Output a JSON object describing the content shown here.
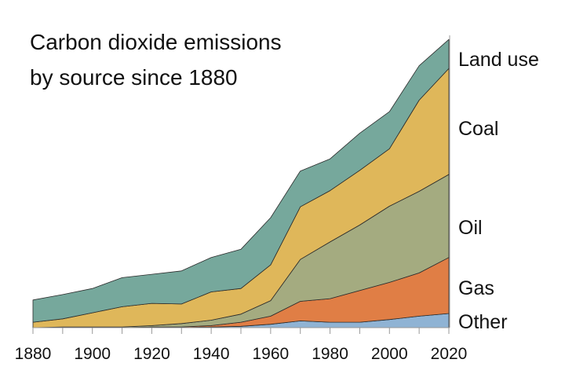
{
  "chart_data": {
    "type": "area",
    "stacked": true,
    "title_lines": [
      "Carbon dioxide emissions",
      "by source since 1880"
    ],
    "xlabel": "",
    "ylabel": "",
    "xlim": [
      1880,
      2020
    ],
    "ylim": [
      0,
      43.3
    ],
    "grid": false,
    "legend": "direct labels at right",
    "x": [
      1880,
      1890,
      1900,
      1910,
      1920,
      1930,
      1940,
      1950,
      1960,
      1970,
      1980,
      1990,
      2000,
      2010,
      2020
    ],
    "x_ticks": [
      "1880",
      "1900",
      "1920",
      "1940",
      "1960",
      "1980",
      "2000",
      "2020"
    ],
    "series": [
      {
        "name": "Other",
        "color": "#8fb3d4",
        "values": [
          0,
          0,
          0,
          0,
          0,
          0,
          0.1,
          0.2,
          0.5,
          1.0,
          0.8,
          0.8,
          1.2,
          1.7,
          2.1
        ]
      },
      {
        "name": "Gas",
        "color": "#e07e45",
        "values": [
          0,
          0,
          0,
          0,
          0.1,
          0.1,
          0.2,
          0.6,
          1.2,
          2.9,
          3.5,
          4.7,
          5.5,
          6.4,
          8.3
        ]
      },
      {
        "name": "Oil",
        "color": "#a4ab80",
        "values": [
          0,
          0.1,
          0.1,
          0.1,
          0.2,
          0.5,
          0.8,
          1.2,
          2.3,
          6.2,
          8.4,
          9.7,
          11.3,
          12.1,
          12.3
        ]
      },
      {
        "name": "Coal",
        "color": "#dfb75a",
        "values": [
          0.8,
          1.2,
          2.1,
          3.0,
          3.3,
          2.9,
          4.2,
          3.8,
          5.3,
          7.8,
          7.6,
          8.1,
          8.5,
          13.5,
          15.7
        ]
      },
      {
        "name": "Land use",
        "color": "#76a89c",
        "values": [
          3.3,
          3.6,
          3.6,
          4.3,
          4.3,
          4.9,
          5.1,
          5.8,
          7.0,
          5.3,
          4.7,
          5.5,
          5.5,
          5.1,
          4.3
        ]
      }
    ]
  }
}
